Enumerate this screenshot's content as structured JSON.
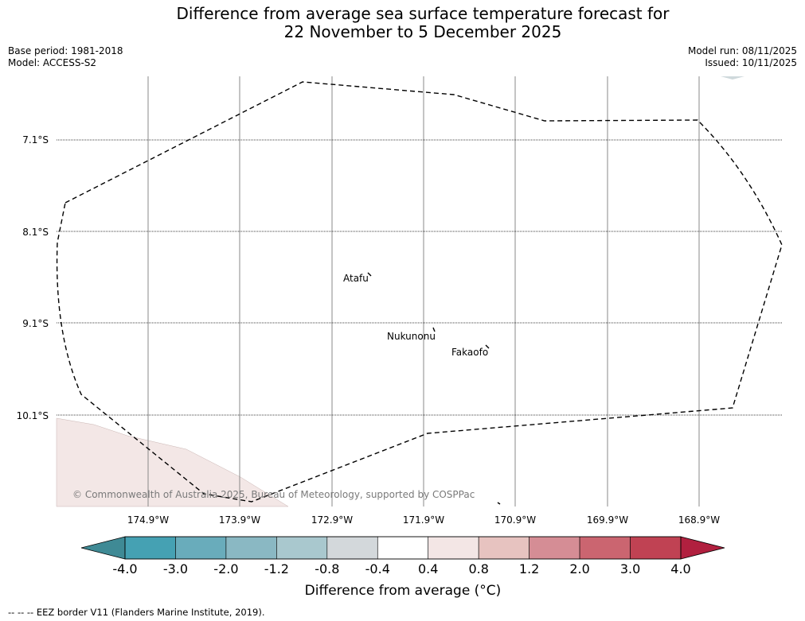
{
  "title": {
    "line1": "Difference from average sea surface temperature forecast for",
    "line2": "22 November to 5 December 2025"
  },
  "meta": {
    "base_period": "Base period: 1981-2018",
    "model": "Model: ACCESS-S2",
    "model_run": "Model run: 08/11/2025",
    "issued": "Issued: 10/11/2025"
  },
  "map": {
    "lat_labels": [
      "7.1°S",
      "8.1°S",
      "9.1°S",
      "10.1°S"
    ],
    "lon_labels": [
      "174.9°W",
      "173.9°W",
      "172.9°W",
      "171.9°W",
      "170.9°W",
      "169.9°W",
      "168.9°W"
    ],
    "places": [
      "Atafu",
      "Nukunonu",
      "Fakaofo"
    ],
    "copyright": "© Commonwealth of Australia 2025, Bureau of Meteorology, supported by COSPPac",
    "colors": {
      "land": "#f3e7e6",
      "eez": "#000000",
      "grid": "#888888"
    }
  },
  "colorbar": {
    "ticks": [
      "-4.0",
      "-3.0",
      "-2.0",
      "-1.2",
      "-0.8",
      "-0.4",
      "0.4",
      "0.8",
      "1.2",
      "2.0",
      "3.0",
      "4.0"
    ],
    "colors": [
      "#3f8a95",
      "#45a1b3",
      "#69acbb",
      "#8ab8c3",
      "#a9c8ce",
      "#d3d8db",
      "#ffffff",
      "#f3e6e5",
      "#e7c3c0",
      "#d58d95",
      "#cb6570",
      "#c04253",
      "#b1203f"
    ],
    "label": "Difference from average (°C)"
  },
  "footer": "--  --  -- EEZ border V11 (Flanders Marine Institute, 2019)."
}
